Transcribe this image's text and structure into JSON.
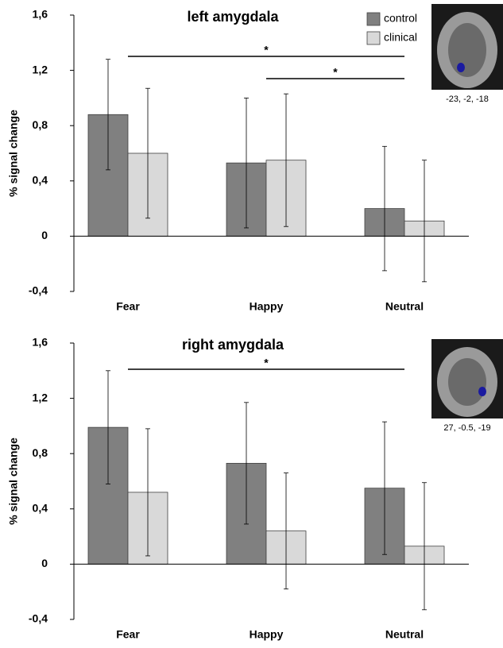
{
  "chart_data": [
    {
      "type": "bar",
      "title": "left amygdala",
      "ylabel": "% signal change",
      "categories": [
        "Fear",
        "Happy",
        "Neutral"
      ],
      "series": [
        {
          "name": "control",
          "color": "#808080",
          "values": [
            0.88,
            0.53,
            0.2
          ],
          "errors": [
            0.4,
            0.47,
            0.45
          ]
        },
        {
          "name": "clinical",
          "color": "#d9d9d9",
          "values": [
            0.6,
            0.55,
            0.11
          ],
          "errors": [
            0.47,
            0.48,
            0.44
          ]
        }
      ],
      "ylim": [
        -0.4,
        1.6
      ],
      "yticks": [
        {
          "value": -0.4,
          "label": "-0,4"
        },
        0,
        {
          "value": 0.4,
          "label": "0,4"
        },
        {
          "value": 0.8,
          "label": "0,8"
        },
        {
          "value": 1.2,
          "label": "1,2"
        },
        {
          "value": 1.6,
          "label": "1,6"
        }
      ],
      "legend": "upper right",
      "annotations": [
        {
          "text": "*",
          "from": "Fear",
          "to": "Neutral"
        },
        {
          "text": "*",
          "from": "Happy",
          "to": "Neutral"
        }
      ],
      "inset_caption": "-23, -2, -18"
    },
    {
      "type": "bar",
      "title": "right amygdala",
      "ylabel": "% signal change",
      "categories": [
        "Fear",
        "Happy",
        "Neutral"
      ],
      "series": [
        {
          "name": "control",
          "color": "#808080",
          "values": [
            0.99,
            0.73,
            0.55
          ],
          "errors": [
            0.41,
            0.44,
            0.48
          ]
        },
        {
          "name": "clinical",
          "color": "#d9d9d9",
          "values": [
            0.52,
            0.24,
            0.13
          ],
          "errors": [
            0.46,
            0.42,
            0.46
          ]
        }
      ],
      "ylim": [
        -0.4,
        1.6
      ],
      "yticks": [
        {
          "value": -0.4,
          "label": "-0,4"
        },
        0,
        {
          "value": 0.4,
          "label": "0,4"
        },
        {
          "value": 0.8,
          "label": "0,8"
        },
        {
          "value": 1.2,
          "label": "1,2"
        },
        {
          "value": 1.6,
          "label": "1,6"
        }
      ],
      "annotations": [
        {
          "text": "*",
          "from": "Fear",
          "to": "Neutral"
        }
      ],
      "inset_caption": "27, -0.5, -19"
    }
  ]
}
